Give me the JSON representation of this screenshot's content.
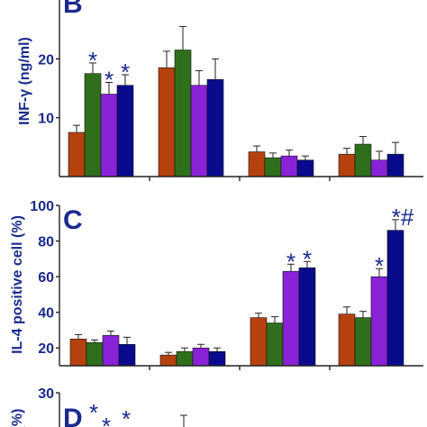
{
  "colors": {
    "series": [
      "#b5410f",
      "#2f6f1c",
      "#8a22d8",
      "#0a0a8c"
    ],
    "text": "#1a2a8c"
  },
  "chart_data": [
    {
      "type": "bar",
      "panel_label": "B",
      "ylabel": "INF-γ (ng/ml)",
      "ylim": [
        0,
        30
      ],
      "yticks": [
        "10",
        "20"
      ],
      "ytick_values": [
        10,
        20
      ],
      "groups": 4,
      "series": [
        {
          "values": [
            7.5,
            18.5,
            4.2,
            3.8
          ],
          "errors": [
            1.2,
            2.8,
            1.0,
            1.0
          ]
        },
        {
          "values": [
            17.5,
            21.5,
            3.2,
            5.5
          ],
          "errors": [
            1.8,
            4.0,
            0.8,
            1.3
          ]
        },
        {
          "values": [
            14.0,
            15.5,
            3.5,
            2.8
          ],
          "errors": [
            2.0,
            2.5,
            1.0,
            1.5
          ]
        },
        {
          "values": [
            15.5,
            16.5,
            2.8,
            3.8
          ],
          "errors": [
            1.8,
            3.5,
            0.7,
            2.0
          ]
        }
      ],
      "annotations": [
        {
          "group": 0,
          "series": 1,
          "text": "*"
        },
        {
          "group": 0,
          "series": 2,
          "text": "*"
        },
        {
          "group": 0,
          "series": 3,
          "text": "*"
        }
      ]
    },
    {
      "type": "bar",
      "panel_label": "C",
      "ylabel": "IL-4 positive cell (%)",
      "ylim": [
        0,
        100
      ],
      "yticks": [
        "20",
        "40",
        "60",
        "80",
        "100"
      ],
      "ytick_values": [
        20,
        40,
        60,
        80,
        100
      ],
      "groups": 4,
      "series": [
        {
          "values": [
            25,
            16,
            37,
            39
          ],
          "errors": [
            2.5,
            1.5,
            2.5,
            4.0
          ]
        },
        {
          "values": [
            23,
            18,
            34,
            37
          ],
          "errors": [
            1.5,
            2.0,
            3.5,
            3.5
          ]
        },
        {
          "values": [
            27,
            20,
            63,
            60
          ],
          "errors": [
            2.5,
            2.0,
            4.0,
            4.5
          ]
        },
        {
          "values": [
            22,
            18,
            65,
            86
          ],
          "errors": [
            4.0,
            2.0,
            3.5,
            6.0
          ]
        }
      ],
      "annotations": [
        {
          "group": 2,
          "series": 2,
          "text": "*"
        },
        {
          "group": 2,
          "series": 3,
          "text": "*"
        },
        {
          "group": 3,
          "series": 2,
          "text": "*"
        },
        {
          "group": 3,
          "series": 3,
          "text": "*#"
        }
      ]
    },
    {
      "type": "bar",
      "panel_label": "D",
      "ylabel": "(%)",
      "ylim": [
        0,
        30
      ],
      "yticks": [
        "30"
      ],
      "ytick_values": [
        30
      ],
      "groups": 4,
      "annotations": [
        {
          "text": "*"
        },
        {
          "text": "*"
        },
        {
          "text": "*"
        }
      ]
    }
  ]
}
